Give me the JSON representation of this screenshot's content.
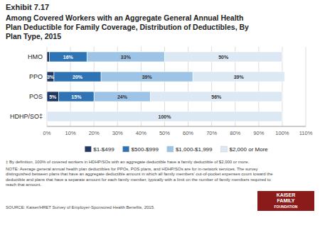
{
  "chart_data": {
    "type": "bar",
    "orientation": "horizontal",
    "stacked": true,
    "title": "Exhibit 7.17",
    "subtitle": "Among Covered Workers with an Aggregate General Annual Health\nPlan Deductible for Family Coverage, Distribution of Deductibles, By\nPlan Type, 2015",
    "categories": [
      "HMO",
      "PPO",
      "POS",
      "HDHP/SO‡"
    ],
    "series": [
      {
        "name": "$1-$499",
        "color": "#1f3864",
        "values": [
          1,
          3,
          5,
          0
        ],
        "value_labels": [
          null,
          "3%",
          "5%",
          null
        ]
      },
      {
        "name": "$500-$999",
        "color": "#2e74b5",
        "values": [
          16,
          20,
          15,
          0
        ],
        "value_labels": [
          "16%",
          "20%",
          "15%",
          null
        ]
      },
      {
        "name": "$1,000-$1,999",
        "color": "#9dc3e6",
        "values": [
          33,
          39,
          24,
          0
        ],
        "value_labels": [
          "33%",
          "39%",
          "24%",
          null
        ]
      },
      {
        "name": "$2,000 or More",
        "color": "#dce9f5",
        "values": [
          50,
          39,
          56,
          100
        ],
        "value_labels": [
          "50%",
          "39%",
          "56%",
          "100%"
        ]
      }
    ],
    "data_labels": true,
    "xlim": [
      0,
      110
    ],
    "xticks": [
      {
        "value": 0,
        "label": "0%"
      },
      {
        "value": 10,
        "label": "10%"
      },
      {
        "value": 20,
        "label": "20%"
      },
      {
        "value": 30,
        "label": "30%"
      },
      {
        "value": 40,
        "label": "40%"
      },
      {
        "value": 50,
        "label": "50%"
      },
      {
        "value": 60,
        "label": "60%"
      },
      {
        "value": 70,
        "label": "70%"
      },
      {
        "value": 80,
        "label": "80%"
      },
      {
        "value": 90,
        "label": "90%"
      },
      {
        "value": 100,
        "label": "100%"
      },
      {
        "value": 110,
        "label": "110%"
      }
    ],
    "grid": true,
    "legend": "bottom",
    "annotations": [
      "‡ By definition, 100% of covered workers in HDHP/SOs with an aggregate deductible have a family deductible of $2,000 or more.",
      "NOTE: Average general annual health plan deductibles for PPOs, POS plans, and HDHP/SOs are for in-network services. The survey\ndistinguished between plans that have an aggregate deductible amount in which all family members' out-of-pocket expenses count toward the\ndeductible and plans that have a separate amount for each family member, typically with a limit on the number of family members required to\nreach that amount.",
      "SOURCE:  Kaiser/HRET Survey of Employer-Sponsored Health Benefits, 2015.",
      "KAISER",
      "FAMILY",
      "FOUNDATION"
    ]
  }
}
